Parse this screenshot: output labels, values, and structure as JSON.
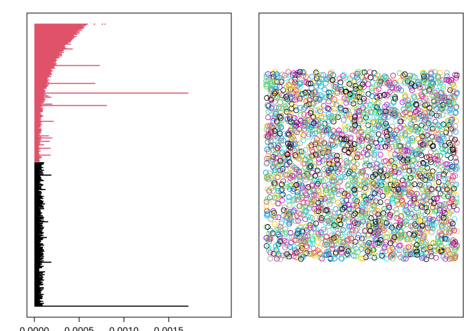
{
  "chart_data": [
    {
      "type": "bar",
      "orientation": "horizontal",
      "title": "",
      "xlabel": "",
      "ylabel": "",
      "xlim": [
        0,
        0.00175
      ],
      "x_ticks": [
        {
          "value": 0,
          "label": "0.0000"
        },
        {
          "value": 0.0005,
          "label": "0.0005"
        },
        {
          "value": 0.001,
          "label": "0.0010"
        },
        {
          "value": 0.0015,
          "label": "0.0015"
        }
      ],
      "grid": false,
      "legend": "none",
      "series": [
        {
          "color": "#DF536B",
          "count": 200,
          "note_values": "bar lengths rise from about 0.00006 to about 0.0005 from bottom to top, with outliers",
          "highlights": [
            {
              "rank_from_top": 100,
              "value": 0.00172
            },
            {
              "rank_from_top": 118,
              "value": 0.00081
            },
            {
              "rank_from_top": 60,
              "value": 0.00073
            },
            {
              "rank_from_top": 86,
              "value": 0.00068
            }
          ]
        },
        {
          "color": "#000000",
          "count": 210,
          "note_values": "bar lengths mostly 0.00002 to 0.00012",
          "highlights": [
            {
              "rank_from_top": 209,
              "value": 0.00172
            },
            {
              "rank_from_top": 18,
              "value": 0.00019
            },
            {
              "rank_from_top": 145,
              "value": 0.00019
            },
            {
              "rank_from_top": 60,
              "value": 0.00012
            }
          ]
        }
      ]
    },
    {
      "type": "scatter",
      "title": "",
      "xlabel": "",
      "ylabel": "",
      "xlim": [
        0,
        1
      ],
      "ylim": [
        0,
        1
      ],
      "grid": false,
      "legend": "none",
      "marker": "open circle",
      "point_count": 3000,
      "colors": [
        "#000000",
        "#DF536B",
        "#61D04F",
        "#2297E6",
        "#28E2E5",
        "#CD0BBC",
        "#F5C710",
        "#9E9E9E"
      ],
      "empty_patch": {
        "x": 0.5,
        "y": 0.51
      }
    }
  ]
}
